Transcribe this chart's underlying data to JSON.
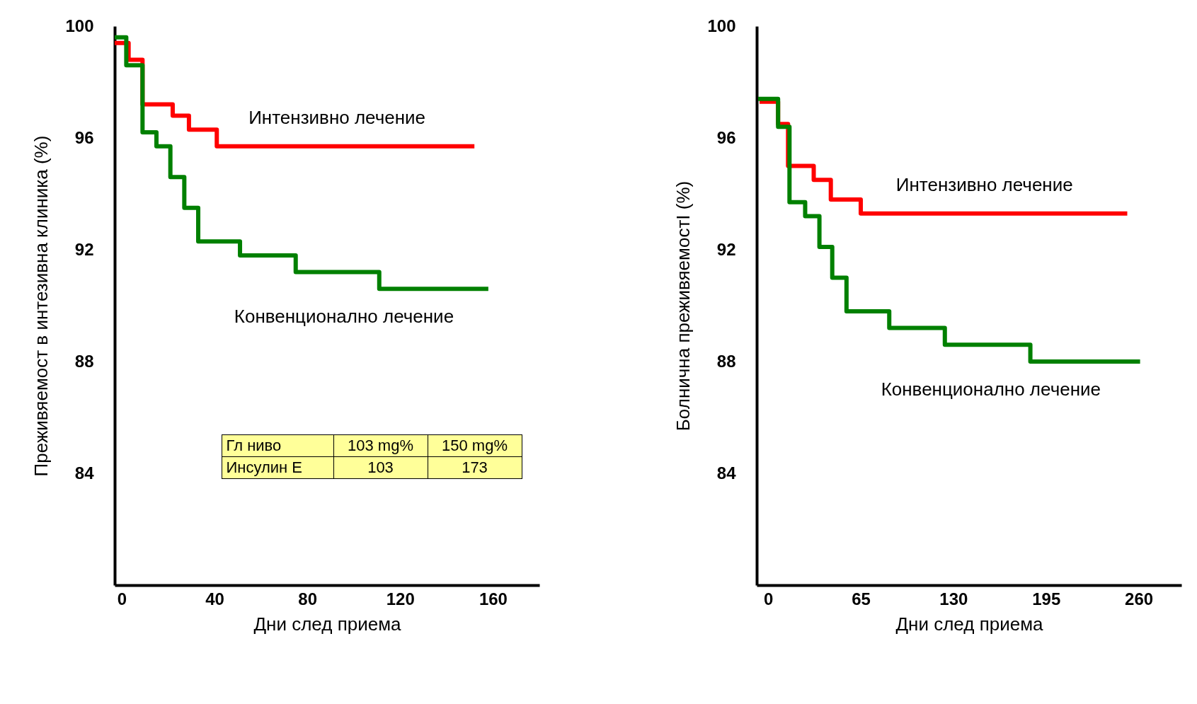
{
  "chart_data": [
    {
      "type": "step",
      "ylabel": "Преживяемост в интезивна клиника (%)",
      "xlabel": "Дни след приема",
      "xlim": [
        -3,
        180
      ],
      "xticks": [
        0,
        40,
        80,
        120,
        160
      ],
      "ylim": [
        80,
        100
      ],
      "yticks": [
        84,
        88,
        92,
        96,
        100
      ],
      "grid": false,
      "legend": false,
      "series": [
        {
          "name": "Интензивно лечение",
          "color": "#ff0000",
          "x": [
            -3,
            3,
            9,
            22,
            29,
            41,
            152
          ],
          "values": [
            99.4,
            98.8,
            97.2,
            96.8,
            96.3,
            95.7,
            95.7
          ]
        },
        {
          "name": "Конвенционално лечение",
          "color": "#008000",
          "x": [
            -3,
            2,
            9,
            15,
            21,
            27,
            33,
            51,
            75,
            111,
            158
          ],
          "values": [
            99.6,
            98.6,
            96.2,
            95.7,
            94.6,
            93.5,
            92.3,
            91.8,
            91.2,
            90.6,
            90.6
          ]
        }
      ],
      "annotations": [
        "Гл ниво",
        "103 mg%",
        "150 mg%",
        "Инсулин Е",
        "103",
        "173"
      ]
    },
    {
      "type": "step",
      "ylabel": "Болнична преживяемостI  (%)",
      "xlabel": "Дни след приема",
      "xlim": [
        -8,
        290
      ],
      "xticks": [
        0,
        65,
        130,
        195,
        260
      ],
      "ylim": [
        80,
        100
      ],
      "yticks": [
        84,
        88,
        92,
        96,
        100
      ],
      "grid": false,
      "legend": false,
      "series": [
        {
          "name": "Интензивно лечение",
          "color": "#ff0000",
          "x": [
            -6,
            7,
            14,
            32,
            44,
            65,
            252
          ],
          "values": [
            97.3,
            96.5,
            95.0,
            94.5,
            93.8,
            93.3,
            93.3
          ]
        },
        {
          "name": "Конвенционално лечение",
          "color": "#008000",
          "x": [
            -7,
            7,
            15,
            26,
            36,
            45,
            55,
            85,
            124,
            184,
            261
          ],
          "values": [
            97.4,
            96.4,
            93.7,
            93.2,
            92.1,
            91.0,
            89.8,
            89.2,
            88.6,
            88.0,
            88.0
          ]
        }
      ]
    }
  ]
}
